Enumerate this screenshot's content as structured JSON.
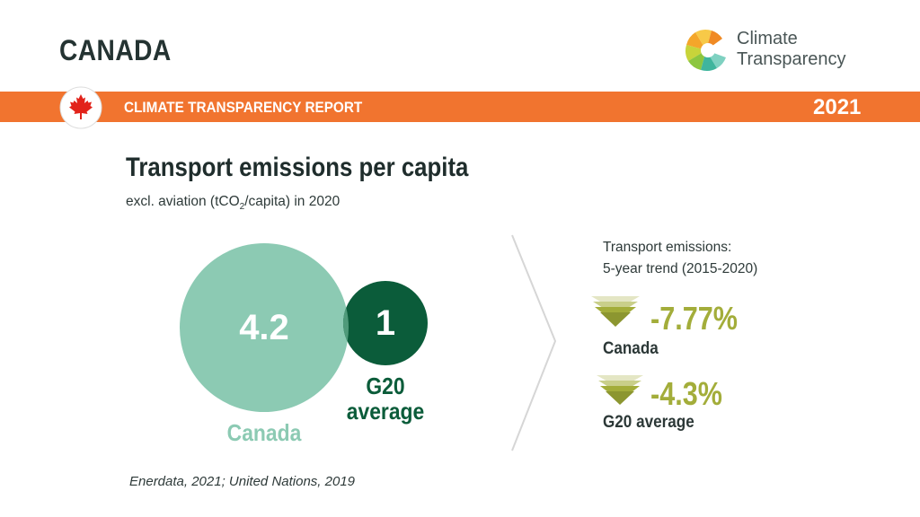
{
  "header": {
    "country": "CANADA",
    "logo_line1": "Climate",
    "logo_line2": "Transparency",
    "band_title": "CLIMATE TRANSPARENCY REPORT",
    "year": "2021"
  },
  "chart_data": {
    "type": "bubble",
    "title": "Transport emissions per capita",
    "subtitle_parts": [
      "excl. aviation (tCO",
      "2",
      "/capita) in 2020"
    ],
    "items": [
      {
        "name": "Canada",
        "value": 4.2,
        "value_label": "4.2",
        "color": "#8ccab3"
      },
      {
        "name": "G20 average",
        "value": 1,
        "value_label": "1",
        "color": "#0b5c3a"
      }
    ],
    "trend": {
      "title": "Transport emissions:\n5-year trend (2015-2020)",
      "items": [
        {
          "name": "Canada",
          "value": -7.77,
          "value_label": "-7.77%"
        },
        {
          "name": "G20 average",
          "value": -4.3,
          "value_label": "-4.3%"
        }
      ],
      "color": "#a3ad3a"
    }
  },
  "labels": {
    "bubble_canada": "Canada",
    "bubble_g20_line1": "G20",
    "bubble_g20_line2": "average"
  },
  "source": "Enerdata, 2021; United Nations, 2019",
  "colors": {
    "accent_orange": "#f1742f",
    "trend_olive": "#a3ad3a",
    "canada_green": "#8ccab3",
    "g20_green": "#0b5c3a"
  }
}
